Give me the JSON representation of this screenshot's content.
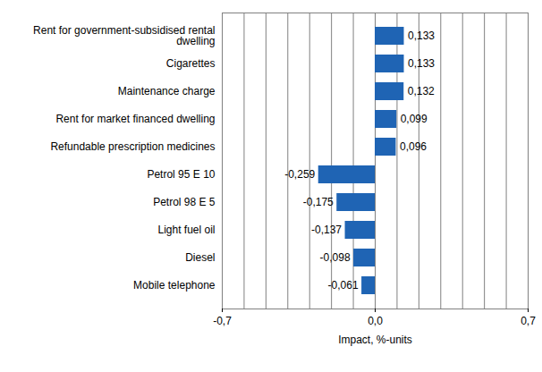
{
  "chart_data": {
    "type": "bar",
    "orientation": "horizontal",
    "categories": [
      "Rent for government-subsidised rental dwelling",
      "Cigarettes",
      "Maintenance charge",
      "Rent for market financed dwelling",
      "Refundable prescription medicines",
      "Petrol 95 E 10",
      "Petrol 98 E 5",
      "Light fuel oil",
      "Diesel",
      "Mobile telephone"
    ],
    "values": [
      0.133,
      0.133,
      0.132,
      0.099,
      0.096,
      -0.259,
      -0.175,
      -0.137,
      -0.098,
      -0.061
    ],
    "value_labels": [
      "0,133",
      "0,133",
      "0,132",
      "0,099",
      "0,096",
      "-0,259",
      "-0,175",
      "-0,137",
      "-0,098",
      "-0,061"
    ],
    "data_labels": true,
    "color": "#1f64b4",
    "x_label": "Impact, %-units",
    "xlim": [
      -0.7,
      0.7
    ],
    "xticks": [
      {
        "value": -0.7,
        "label": "-0,7"
      },
      {
        "value": -0.6,
        "label": null
      },
      {
        "value": -0.5,
        "label": null
      },
      {
        "value": -0.4,
        "label": null
      },
      {
        "value": -0.3,
        "label": null
      },
      {
        "value": -0.2,
        "label": null
      },
      {
        "value": -0.1,
        "label": null
      },
      {
        "value": 0,
        "label": "0,0"
      },
      {
        "value": 0.1,
        "label": null
      },
      {
        "value": 0.2,
        "label": null
      },
      {
        "value": 0.3,
        "label": null
      },
      {
        "value": 0.4,
        "label": null
      },
      {
        "value": 0.5,
        "label": null
      },
      {
        "value": 0.6,
        "label": null
      },
      {
        "value": 0.7,
        "label": "0,7"
      }
    ],
    "grid": true
  }
}
